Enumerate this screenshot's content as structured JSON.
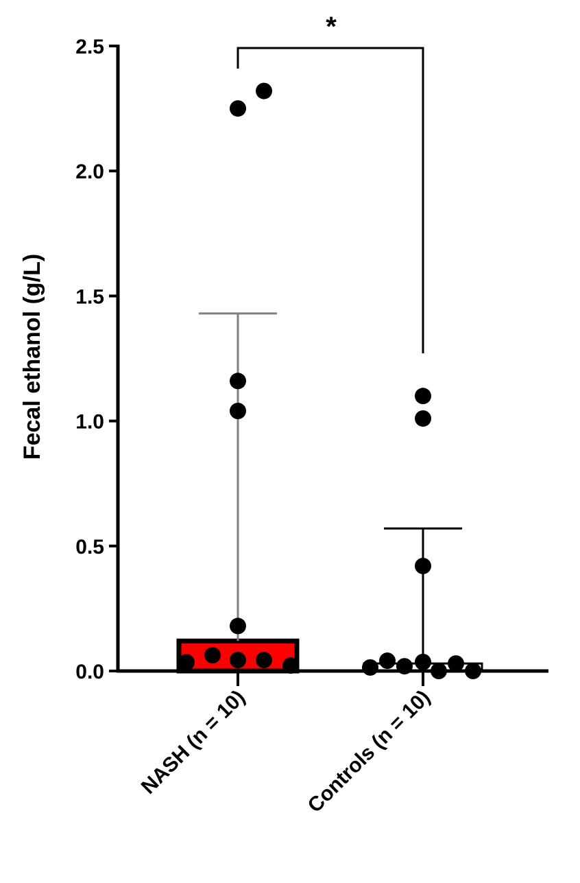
{
  "chart_data": {
    "type": "bar",
    "ylabel": "Fecal ethanol (g/L)",
    "categories": [
      "NASH (n = 10)",
      "Controls (n = 10)"
    ],
    "values": [
      0.12,
      0.03
    ],
    "error_top": [
      1.43,
      0.57
    ],
    "colors": [
      "#ff0000",
      "#ffffff"
    ],
    "error_colors": [
      "#808080",
      "#000000"
    ],
    "points": [
      [
        2.25,
        2.32,
        1.16,
        1.04,
        0.18,
        0.035,
        0.063,
        0.044,
        0.044,
        0.022
      ],
      [
        1.1,
        1.01,
        0.42,
        0.014,
        0.041,
        0.019,
        0.036,
        0.0,
        0.03,
        0.0
      ]
    ],
    "point_color": "#000000",
    "annotation": "*",
    "ylim": [
      0,
      2.5
    ],
    "yticks": [
      {
        "value": 0,
        "label": "0.0"
      },
      0.5,
      {
        "value": 1,
        "label": "1.0"
      },
      1.5,
      {
        "value": 2,
        "label": "2.0"
      },
      2.5
    ]
  }
}
